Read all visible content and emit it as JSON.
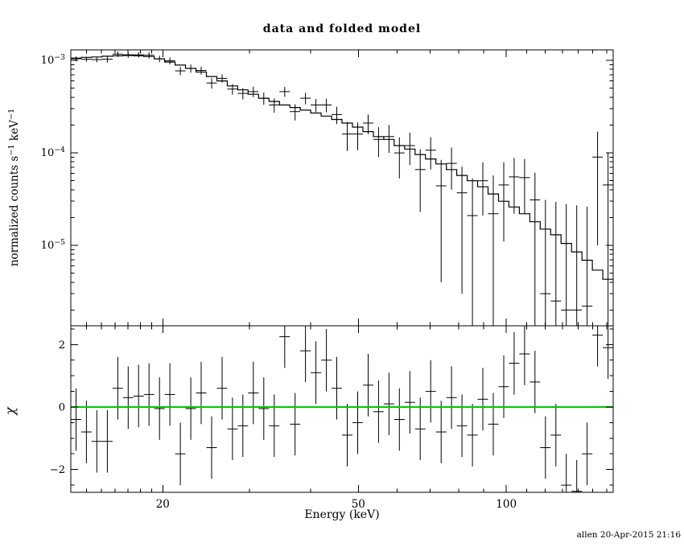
{
  "page": {
    "title": "data and folded model",
    "x_axis_label": "Energy (keV)",
    "top_y_axis_label": "normalized counts s^-1^ keV^-1^",
    "bottom_y_axis_label": "χ",
    "footer": "allen 20-Apr-2015 21:16"
  },
  "colors": {
    "foreground": "#000000",
    "background": "#ffffff",
    "zero_line": "#00c800"
  },
  "chart_data": [
    {
      "type": "scatter",
      "panel": "top",
      "title": "data and folded model",
      "ylabel": "normalized counts s^-1 keV^-1",
      "xscale": "log",
      "yscale": "log",
      "xlim": [
        13.0,
        165.0
      ],
      "ylim": [
        1.35e-06,
        0.0013
      ],
      "x_major_ticks": [
        20,
        50,
        100
      ],
      "x_minor_ticks": [
        14,
        15,
        16,
        17,
        18,
        19,
        30,
        40,
        60,
        70,
        80,
        90,
        110,
        120,
        130,
        140,
        150,
        160
      ],
      "y_major_ticks": [
        1e-05,
        0.0001,
        0.001
      ],
      "grid": false,
      "legend": "none",
      "x_edges": [
        13.0,
        13.65,
        14.33,
        15.05,
        15.81,
        16.6,
        17.43,
        18.3,
        19.22,
        20.18,
        21.19,
        22.25,
        23.37,
        24.54,
        25.77,
        27.06,
        28.41,
        29.83,
        31.33,
        32.9,
        34.55,
        36.28,
        38.09,
        40.0,
        42.01,
        44.11,
        46.32,
        48.64,
        51.08,
        53.64,
        56.32,
        59.14,
        62.1,
        65.21,
        68.48,
        71.91,
        75.51,
        79.29,
        83.26,
        87.43,
        91.81,
        96.41,
        101.24,
        106.31,
        111.63,
        117.22,
        123.09,
        129.25,
        135.73,
        142.52,
        149.66,
        157.16,
        165.03
      ],
      "series": [
        {
          "name": "data",
          "style": "error-cross",
          "y": [
            0.00104,
            0.00103,
            0.00102,
            0.00103,
            0.00117,
            0.00115,
            0.00115,
            0.00114,
            0.00104,
            0.00099,
            0.00077,
            0.00082,
            0.00078,
            0.00057,
            0.00064,
            0.00049,
            0.00044,
            0.00046,
            0.00039,
            0.00033,
            0.00046,
            0.00028,
            0.00039,
            0.00033,
            0.00033,
            0.00026,
            0.00016,
            0.00016,
            0.00021,
            0.00014,
            0.00015,
            0.0001,
            0.00012,
            6.6e-05,
            0.000107,
            4.4e-05,
            7.7e-05,
            3.7e-05,
            2.1e-05,
            5e-05,
            2.2e-05,
            4.5e-05,
            5.5e-05,
            5.4e-05,
            3.1e-05,
            3e-06,
            2.5e-06,
            2e-06,
            2e-06,
            2.2e-06,
            9e-05,
            4.5e-05
          ],
          "yerr": [
            6.4e-05,
            6.5e-05,
            6.5e-05,
            7.8e-05,
            7.8e-05,
            7.9e-05,
            7.8e-05,
            8.8e-05,
            8.3e-05,
            8.6e-05,
            8e-05,
            8.2e-05,
            7.5e-05,
            7.4e-05,
            6.6e-05,
            6.4e-05,
            6.2e-05,
            6e-05,
            5.9e-05,
            5.8e-05,
            5.6e-05,
            5.6e-05,
            5.5e-05,
            5.4e-05,
            5.5e-05,
            5.5e-05,
            5.5e-05,
            5.3e-05,
            5.1e-05,
            5e-05,
            5e-05,
            4.7e-05,
            4.6e-05,
            4.3e-05,
            4.1e-05,
            4e-05,
            3.7e-05,
            3.4e-05,
            3.2e-05,
            2.9e-05,
            3.5e-05,
            3.4e-05,
            3.3e-05,
            3.2e-05,
            3e-05,
            2.8e-05,
            2.7e-05,
            2.6e-05,
            2.5e-05,
            2.4e-05,
            8e-05,
            5.5e-05
          ]
        },
        {
          "name": "folded model",
          "style": "step",
          "y": [
            0.00106,
            0.00108,
            0.00109,
            0.00111,
            0.00112,
            0.00113,
            0.00112,
            0.0011,
            0.00104,
            0.00096,
            0.00089,
            0.00082,
            0.00075,
            0.00067,
            0.0006,
            0.00053,
            0.00048,
            0.00043,
            0.00039,
            0.00036,
            0.00033,
            0.00031,
            0.00029,
            0.00027,
            0.00025,
            0.00023,
            0.00021,
            0.00019,
            0.00017,
            0.00015,
            0.00014,
            0.00012,
            0.00011,
            9.6e-05,
            8.6e-05,
            7.6e-05,
            6.6e-05,
            5.7e-05,
            5e-05,
            4.3e-05,
            3.6e-05,
            3e-05,
            2.6e-05,
            2.2e-05,
            1.8e-05,
            1.5e-05,
            1.3e-05,
            1.05e-05,
            8.5e-06,
            6.9e-06,
            5.4e-06,
            4.3e-06
          ]
        }
      ]
    },
    {
      "type": "scatter",
      "panel": "bottom",
      "xlabel": "Energy (keV)",
      "ylabel": "χ",
      "xscale": "log",
      "yscale": "linear",
      "xlim": [
        13.0,
        165.0
      ],
      "ylim": [
        -2.73,
        2.6
      ],
      "x_major_ticks": [
        20,
        50,
        100
      ],
      "x_minor_ticks": [
        14,
        15,
        16,
        17,
        18,
        19,
        30,
        40,
        60,
        70,
        80,
        90,
        110,
        120,
        130,
        140,
        150,
        160
      ],
      "y_major_ticks": [
        -2,
        0,
        2
      ],
      "y_minor_ticks": [
        -2.5,
        -1.5,
        -1,
        -0.5,
        0.5,
        1,
        1.5,
        2.5
      ],
      "grid": false,
      "legend": "none",
      "x_edges": [
        13.0,
        13.65,
        14.33,
        15.05,
        15.81,
        16.6,
        17.43,
        18.3,
        19.22,
        20.18,
        21.19,
        22.25,
        23.37,
        24.54,
        25.77,
        27.06,
        28.41,
        29.83,
        31.33,
        32.9,
        34.55,
        36.28,
        38.09,
        40.0,
        42.01,
        44.11,
        46.32,
        48.64,
        51.08,
        53.64,
        56.32,
        59.14,
        62.1,
        65.21,
        68.48,
        71.91,
        75.51,
        79.29,
        83.26,
        87.43,
        91.81,
        96.41,
        101.24,
        106.31,
        111.63,
        117.22,
        123.09,
        129.25,
        135.73,
        142.52,
        149.66,
        157.16,
        165.03
      ],
      "series": [
        {
          "name": "chi residuals",
          "style": "error-cross",
          "y": [
            -0.4,
            -0.8,
            -1.1,
            -1.1,
            0.6,
            0.3,
            0.35,
            0.4,
            -0.05,
            0.4,
            -1.5,
            -0.05,
            0.45,
            -1.3,
            0.6,
            -0.7,
            -0.6,
            0.45,
            -0.05,
            -0.6,
            2.25,
            -0.55,
            1.8,
            1.1,
            1.5,
            0.6,
            -0.9,
            -0.5,
            0.7,
            -0.15,
            0.1,
            -0.4,
            0.15,
            -0.7,
            0.5,
            -0.8,
            0.3,
            -0.6,
            -0.9,
            0.25,
            -0.55,
            0.65,
            1.4,
            1.7,
            0.8,
            -1.3,
            -0.9,
            -2.5,
            -2.7,
            -1.5,
            2.3,
            1.9
          ],
          "yerr": 1
        },
        {
          "name": "zero line",
          "style": "hline",
          "y": 0,
          "color": "#00c800"
        }
      ]
    }
  ]
}
